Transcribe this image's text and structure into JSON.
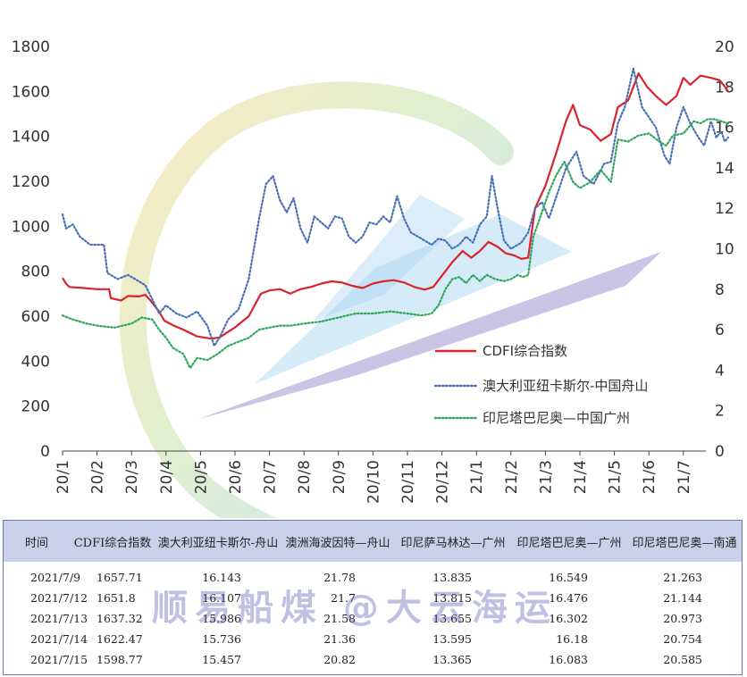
{
  "chart_data": {
    "type": "line",
    "x_ticks": [
      "20/1",
      "20/2",
      "20/3",
      "20/4",
      "20/5",
      "20/6",
      "20/7",
      "20/8",
      "20/9",
      "20/10",
      "20/11",
      "20/12",
      "21/1",
      "21/2",
      "21/3",
      "21/4",
      "21/5",
      "21/6",
      "21/7"
    ],
    "y_left": {
      "min": 0,
      "max": 1800,
      "ticks": [
        "0",
        "200",
        "400",
        "600",
        "800",
        "1000",
        "1200",
        "1400",
        "1600",
        "1800"
      ]
    },
    "y_right": {
      "min": 0,
      "max": 20,
      "ticks": [
        "0",
        "2",
        "4",
        "6",
        "8",
        "10",
        "12",
        "14",
        "16",
        "18",
        "20"
      ]
    },
    "grid": false,
    "legend_position": "center-right",
    "series": [
      {
        "name": "CDFI综合指数",
        "axis": "left",
        "color": "#d9232d",
        "style": "solid",
        "points": [
          [
            0,
            770
          ],
          [
            0.1,
            745
          ],
          [
            0.2,
            730
          ],
          [
            0.6,
            725
          ],
          [
            1.0,
            720
          ],
          [
            1.35,
            720
          ],
          [
            1.4,
            680
          ],
          [
            1.7,
            670
          ],
          [
            1.9,
            690
          ],
          [
            2.2,
            688
          ],
          [
            2.4,
            695
          ],
          [
            2.55,
            670
          ],
          [
            2.8,
            620
          ],
          [
            2.95,
            580
          ],
          [
            3.2,
            560
          ],
          [
            3.5,
            540
          ],
          [
            3.9,
            510
          ],
          [
            4.3,
            500
          ],
          [
            4.55,
            505
          ],
          [
            4.7,
            520
          ],
          [
            5.0,
            550
          ],
          [
            5.4,
            600
          ],
          [
            5.75,
            700
          ],
          [
            6.0,
            715
          ],
          [
            6.3,
            720
          ],
          [
            6.6,
            700
          ],
          [
            6.9,
            720
          ],
          [
            7.2,
            730
          ],
          [
            7.5,
            745
          ],
          [
            7.8,
            755
          ],
          [
            8.1,
            750
          ],
          [
            8.4,
            735
          ],
          [
            8.7,
            725
          ],
          [
            9.0,
            745
          ],
          [
            9.3,
            755
          ],
          [
            9.6,
            760
          ],
          [
            9.9,
            750
          ],
          [
            10.2,
            730
          ],
          [
            10.5,
            718
          ],
          [
            10.75,
            730
          ],
          [
            11.0,
            780
          ],
          [
            11.3,
            840
          ],
          [
            11.6,
            890
          ],
          [
            11.85,
            860
          ],
          [
            12.1,
            890
          ],
          [
            12.35,
            930
          ],
          [
            12.6,
            910
          ],
          [
            12.85,
            880
          ],
          [
            13.1,
            870
          ],
          [
            13.3,
            855
          ],
          [
            13.5,
            860
          ],
          [
            13.7,
            1080
          ],
          [
            14.0,
            1180
          ],
          [
            14.3,
            1320
          ],
          [
            14.6,
            1470
          ],
          [
            14.8,
            1540
          ],
          [
            15.0,
            1450
          ],
          [
            15.3,
            1430
          ],
          [
            15.6,
            1380
          ],
          [
            15.9,
            1410
          ],
          [
            16.1,
            1530
          ],
          [
            16.4,
            1560
          ],
          [
            16.7,
            1680
          ],
          [
            16.95,
            1620
          ],
          [
            17.2,
            1580
          ],
          [
            17.5,
            1540
          ],
          [
            17.8,
            1580
          ],
          [
            18.0,
            1660
          ],
          [
            18.2,
            1630
          ],
          [
            18.5,
            1670
          ],
          [
            18.8,
            1660
          ],
          [
            19.05,
            1650
          ],
          [
            19.2,
            1622
          ],
          [
            19.3,
            1599
          ]
        ]
      },
      {
        "name": "澳大利亚纽卡斯尔-中国舟山",
        "axis": "right",
        "color": "#4a6fb5",
        "style": "dotted",
        "points": [
          [
            0,
            11.7
          ],
          [
            0.1,
            11.0
          ],
          [
            0.3,
            11.2
          ],
          [
            0.5,
            10.6
          ],
          [
            0.8,
            10.2
          ],
          [
            1.2,
            10.2
          ],
          [
            1.3,
            8.8
          ],
          [
            1.6,
            8.5
          ],
          [
            1.9,
            8.7
          ],
          [
            2.2,
            8.4
          ],
          [
            2.4,
            8.2
          ],
          [
            2.6,
            7.5
          ],
          [
            2.8,
            6.8
          ],
          [
            3.0,
            7.2
          ],
          [
            3.3,
            6.8
          ],
          [
            3.6,
            6.6
          ],
          [
            3.9,
            6.9
          ],
          [
            4.2,
            6.2
          ],
          [
            4.4,
            5.2
          ],
          [
            4.55,
            5.6
          ],
          [
            4.8,
            6.5
          ],
          [
            5.1,
            7.0
          ],
          [
            5.4,
            8.5
          ],
          [
            5.7,
            11.5
          ],
          [
            5.9,
            13.2
          ],
          [
            6.1,
            13.6
          ],
          [
            6.3,
            12.4
          ],
          [
            6.5,
            11.8
          ],
          [
            6.7,
            12.5
          ],
          [
            6.9,
            11.0
          ],
          [
            7.1,
            10.3
          ],
          [
            7.3,
            11.6
          ],
          [
            7.5,
            11.3
          ],
          [
            7.7,
            11.0
          ],
          [
            7.9,
            11.6
          ],
          [
            8.1,
            11.5
          ],
          [
            8.3,
            10.6
          ],
          [
            8.5,
            10.3
          ],
          [
            8.7,
            10.6
          ],
          [
            8.9,
            11.3
          ],
          [
            9.1,
            11.2
          ],
          [
            9.3,
            11.6
          ],
          [
            9.5,
            11.3
          ],
          [
            9.7,
            12.6
          ],
          [
            9.9,
            11.5
          ],
          [
            10.1,
            10.8
          ],
          [
            10.3,
            10.6
          ],
          [
            10.5,
            10.4
          ],
          [
            10.7,
            10.2
          ],
          [
            10.9,
            10.5
          ],
          [
            11.1,
            10.4
          ],
          [
            11.3,
            10.0
          ],
          [
            11.5,
            10.2
          ],
          [
            11.7,
            10.6
          ],
          [
            11.9,
            10.3
          ],
          [
            12.1,
            11.2
          ],
          [
            12.3,
            11.6
          ],
          [
            12.45,
            13.6
          ],
          [
            12.6,
            12.1
          ],
          [
            12.8,
            10.4
          ],
          [
            13.0,
            10.0
          ],
          [
            13.3,
            10.3
          ],
          [
            13.5,
            10.8
          ],
          [
            13.7,
            12.0
          ],
          [
            13.9,
            12.3
          ],
          [
            14.1,
            11.5
          ],
          [
            14.3,
            12.5
          ],
          [
            14.6,
            14.0
          ],
          [
            14.9,
            14.8
          ],
          [
            15.1,
            13.6
          ],
          [
            15.4,
            13.2
          ],
          [
            15.7,
            14.2
          ],
          [
            15.9,
            14.3
          ],
          [
            16.1,
            16.2
          ],
          [
            16.3,
            17.0
          ],
          [
            16.55,
            18.9
          ],
          [
            16.8,
            17.0
          ],
          [
            17.0,
            16.5
          ],
          [
            17.2,
            16.0
          ],
          [
            17.45,
            14.6
          ],
          [
            17.6,
            14.2
          ],
          [
            17.8,
            16.0
          ],
          [
            18.0,
            17.0
          ],
          [
            18.2,
            16.2
          ],
          [
            18.4,
            15.6
          ],
          [
            18.6,
            15.1
          ],
          [
            18.8,
            16.3
          ],
          [
            18.95,
            15.5
          ],
          [
            19.1,
            15.8
          ],
          [
            19.2,
            15.3
          ],
          [
            19.3,
            15.5
          ]
        ]
      },
      {
        "name": "印尼塔巴尼奥—中国广州",
        "axis": "right",
        "color": "#2fa55d",
        "style": "dotted",
        "points": [
          [
            0,
            6.7
          ],
          [
            0.3,
            6.5
          ],
          [
            0.7,
            6.3
          ],
          [
            1.0,
            6.2
          ],
          [
            1.5,
            6.1
          ],
          [
            2.0,
            6.3
          ],
          [
            2.3,
            6.6
          ],
          [
            2.6,
            6.5
          ],
          [
            2.8,
            6.0
          ],
          [
            3.0,
            5.6
          ],
          [
            3.2,
            5.1
          ],
          [
            3.5,
            4.8
          ],
          [
            3.7,
            4.1
          ],
          [
            3.9,
            4.6
          ],
          [
            4.2,
            4.5
          ],
          [
            4.5,
            4.8
          ],
          [
            4.8,
            5.2
          ],
          [
            5.1,
            5.4
          ],
          [
            5.4,
            5.6
          ],
          [
            5.7,
            6.0
          ],
          [
            6.0,
            6.1
          ],
          [
            6.3,
            6.2
          ],
          [
            6.6,
            6.2
          ],
          [
            7.0,
            6.3
          ],
          [
            7.5,
            6.4
          ],
          [
            8.0,
            6.6
          ],
          [
            8.5,
            6.8
          ],
          [
            9.0,
            6.8
          ],
          [
            9.5,
            6.9
          ],
          [
            10.0,
            6.8
          ],
          [
            10.4,
            6.7
          ],
          [
            10.7,
            6.8
          ],
          [
            10.9,
            7.2
          ],
          [
            11.1,
            8.0
          ],
          [
            11.3,
            8.5
          ],
          [
            11.5,
            8.6
          ],
          [
            11.7,
            8.3
          ],
          [
            11.9,
            8.7
          ],
          [
            12.1,
            8.4
          ],
          [
            12.3,
            8.7
          ],
          [
            12.55,
            8.5
          ],
          [
            12.8,
            8.4
          ],
          [
            13.0,
            8.5
          ],
          [
            13.2,
            8.7
          ],
          [
            13.35,
            8.6
          ],
          [
            13.5,
            8.7
          ],
          [
            13.65,
            10.6
          ],
          [
            13.9,
            11.8
          ],
          [
            14.1,
            12.8
          ],
          [
            14.3,
            13.6
          ],
          [
            14.55,
            14.3
          ],
          [
            14.8,
            13.3
          ],
          [
            15.0,
            13.0
          ],
          [
            15.3,
            13.3
          ],
          [
            15.6,
            13.9
          ],
          [
            15.9,
            13.3
          ],
          [
            16.1,
            15.4
          ],
          [
            16.4,
            15.3
          ],
          [
            16.7,
            15.6
          ],
          [
            17.0,
            15.7
          ],
          [
            17.3,
            15.3
          ],
          [
            17.5,
            15.1
          ],
          [
            17.7,
            15.6
          ],
          [
            18.0,
            15.7
          ],
          [
            18.3,
            16.3
          ],
          [
            18.5,
            16.2
          ],
          [
            18.7,
            16.4
          ],
          [
            18.9,
            16.4
          ],
          [
            19.1,
            16.3
          ],
          [
            19.3,
            16.2
          ]
        ]
      }
    ]
  },
  "table": {
    "headers": [
      "时间",
      "CDFI综合指数",
      "澳大利亚纽卡斯尔-舟山",
      "澳洲海波因特—舟山",
      "印尼萨马林达—广州",
      "印尼塔巴尼奥—广州",
      "印尼塔巴尼奥—南通"
    ],
    "rows": [
      [
        "2021/7/9",
        "1657.71",
        "16.143",
        "21.78",
        "13.835",
        "16.549",
        "21.263"
      ],
      [
        "2021/7/12",
        "1651.8",
        "16.107",
        "21.7",
        "13.815",
        "16.476",
        "21.144"
      ],
      [
        "2021/7/13",
        "1637.32",
        "15.986",
        "21.58",
        "13.655",
        "16.302",
        "20.973"
      ],
      [
        "2021/7/14",
        "1622.47",
        "15.736",
        "21.36",
        "13.595",
        "16.18",
        "20.754"
      ],
      [
        "2021/7/15",
        "1598.77",
        "15.457",
        "20.82",
        "13.365",
        "16.083",
        "20.585"
      ]
    ]
  },
  "watermark": "顺易船煤 @大云海运",
  "colors": {
    "header_bg": "#c8d0ea",
    "logo_purple": "#7b73bd",
    "logo_blue": "#86c4ea"
  }
}
